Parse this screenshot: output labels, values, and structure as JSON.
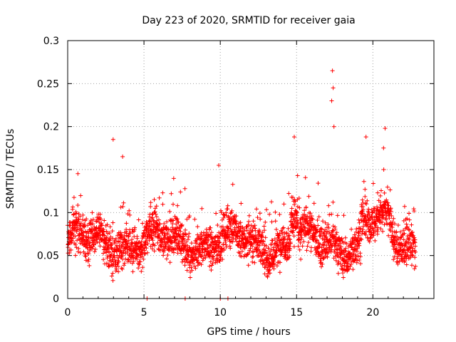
{
  "chart_data": {
    "type": "scatter",
    "title": "Day 223 of 2020, SRMTID for receiver gaia",
    "xlabel": "GPS time / hours",
    "ylabel": "SRMTID / TECUs",
    "xlim": [
      0,
      24
    ],
    "ylim": [
      0,
      0.3
    ],
    "xticks": [
      0,
      5,
      10,
      15,
      20
    ],
    "xtick_labels": [
      "0",
      "5",
      "10",
      "15",
      "20"
    ],
    "yticks": [
      0,
      0.05,
      0.1,
      0.15,
      0.2,
      0.25,
      0.3
    ],
    "ytick_labels": [
      "0",
      "0.05",
      "0.1",
      "0.15",
      "0.2",
      "0.25",
      "0.3"
    ],
    "grid": true,
    "marker": "+",
    "series_color": "#ff0000",
    "x_range_of_points": [
      0,
      22.8
    ],
    "typical_y_band": [
      0.03,
      0.11
    ],
    "baseline_zero_points_x": [
      5.2,
      7.7,
      10.0,
      10.5
    ],
    "notable_peaks": [
      {
        "x": 2.98,
        "y": 0.185
      },
      {
        "x": 3.6,
        "y": 0.165
      },
      {
        "x": 9.9,
        "y": 0.155
      },
      {
        "x": 14.85,
        "y": 0.188
      },
      {
        "x": 17.35,
        "y": 0.265
      },
      {
        "x": 17.4,
        "y": 0.245
      },
      {
        "x": 17.3,
        "y": 0.23
      },
      {
        "x": 17.45,
        "y": 0.2
      },
      {
        "x": 19.55,
        "y": 0.188
      },
      {
        "x": 20.8,
        "y": 0.198
      },
      {
        "x": 20.7,
        "y": 0.175
      }
    ]
  }
}
